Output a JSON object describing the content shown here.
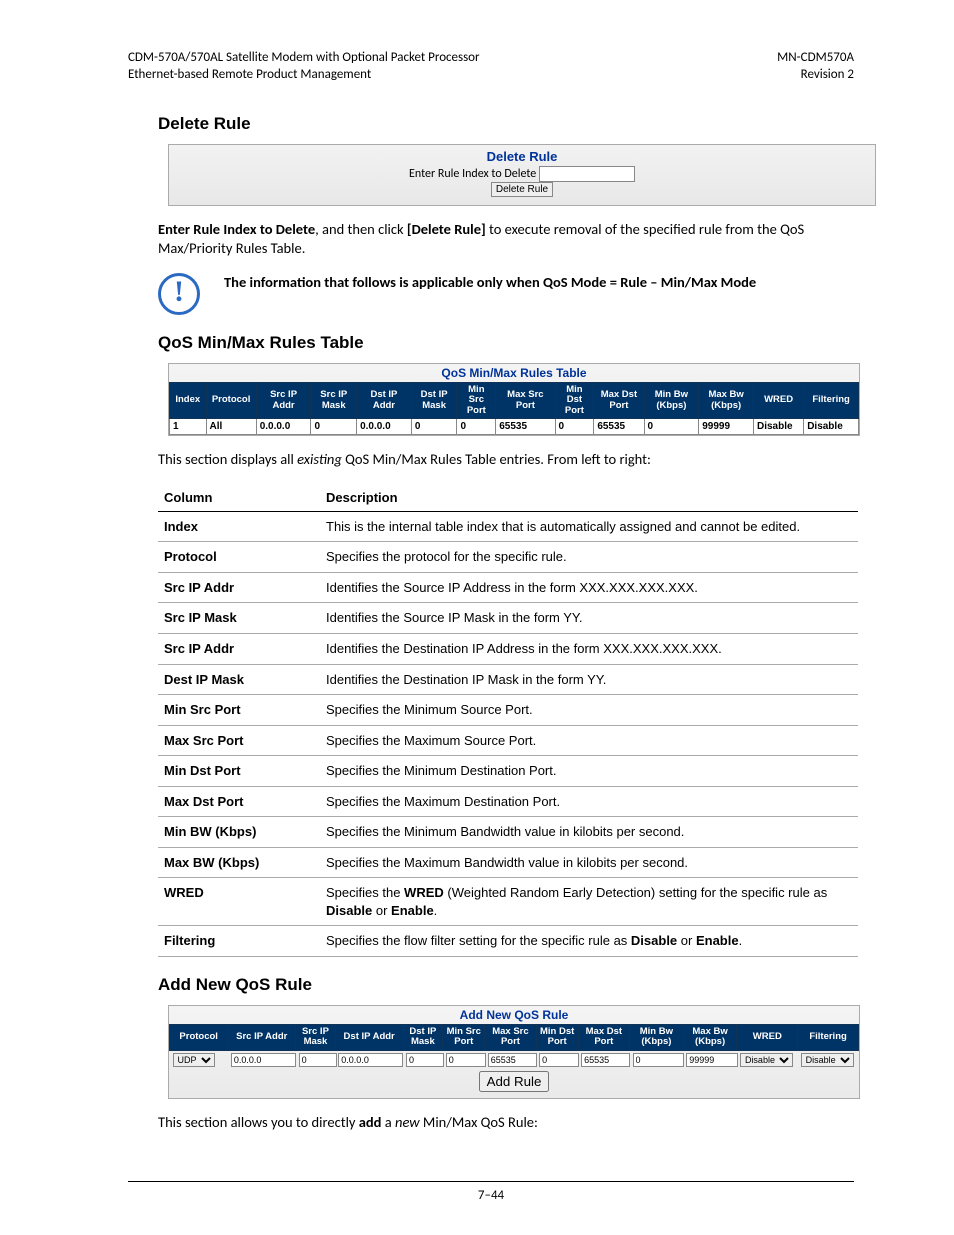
{
  "header": {
    "left_line1": "CDM-570A/570AL Satellite Modem with Optional Packet Processor",
    "left_line2": "Ethernet-based Remote Product Management",
    "right_line1": "MN-CDM570A",
    "right_line2": "Revision 2"
  },
  "section_delete_title": "Delete Rule",
  "delete_panel": {
    "title": "Delete Rule",
    "label": "Enter Rule Index to Delete",
    "button": "Delete Rule"
  },
  "delete_text_1a": "Enter Rule Index to Delete",
  "delete_text_1b": ", and then click ",
  "delete_text_1c": "[Delete Rule]",
  "delete_text_1d": " to execute removal of the specified rule from the QoS Max/Priority Rules Table.",
  "note_text": "The information that follows is applicable only when QoS Mode = Rule – Min/Max Mode",
  "section_qos_title": "QoS Min/Max Rules Table",
  "qos_panel_title": "QoS Min/Max Rules Table",
  "qos_headers": [
    "Index",
    "Protocol",
    "Src IP Addr",
    "Src IP Mask",
    "Dst IP Addr",
    "Dst IP Mask",
    "Min Src Port",
    "Max Src Port",
    "Min Dst Port",
    "Max Dst Port",
    "Min Bw (Kbps)",
    "Max Bw (Kbps)",
    "WRED",
    "Filtering"
  ],
  "qos_row": [
    "1",
    "All",
    "0.0.0.0",
    "0",
    "0.0.0.0",
    "0",
    "0",
    "65535",
    "0",
    "65535",
    "0",
    "99999",
    "Disable",
    "Disable"
  ],
  "qos_intro_a": "This section displays all ",
  "qos_intro_b": "existing",
  "qos_intro_c": " QoS Min/Max Rules Table entries. From left to right:",
  "desc_table": {
    "head_col": "Column",
    "head_desc": "Description",
    "rows": [
      {
        "c": "Index",
        "d": "This is the internal table index that is automatically assigned and cannot be edited."
      },
      {
        "c": "Protocol",
        "d": "Specifies the protocol for the specific rule."
      },
      {
        "c": "Src IP Addr",
        "d": "Identifies the Source IP Address in the form XXX.XXX.XXX.XXX."
      },
      {
        "c": "Src IP Mask",
        "d": "Identifies the Source IP Mask in the form YY."
      },
      {
        "c": "Src IP Addr",
        "d": "Identifies the Destination IP Address in the form XXX.XXX.XXX.XXX."
      },
      {
        "c": "Dest IP Mask",
        "d": "Identifies the Destination IP Mask in the form YY."
      },
      {
        "c": "Min Src Port",
        "d": "Specifies the Minimum Source Port."
      },
      {
        "c": "Max Src Port",
        "d": "Specifies the Maximum Source Port."
      },
      {
        "c": "Min Dst Port",
        "d": "Specifies the Minimum Destination Port."
      },
      {
        "c": "Max Dst Port",
        "d": "Specifies the Maximum Destination Port."
      },
      {
        "c": "Min BW (Kbps)",
        "d": "Specifies the Minimum Bandwidth value in kilobits per second."
      },
      {
        "c": "Max BW (Kbps)",
        "d": "Specifies the Maximum Bandwidth value in kilobits per second."
      }
    ],
    "wred_c": "WRED",
    "wred_d1": "Specifies the ",
    "wred_d2": "WRED",
    "wred_d3": " (Weighted Random Early Detection) setting for the specific rule as ",
    "wred_d4": "Disable",
    "wred_d5": " or ",
    "wred_d6": "Enable",
    "wred_d7": ".",
    "filt_c": "Filtering",
    "filt_d1": "Specifies the flow filter setting for the specific rule as ",
    "filt_d2": "Disable",
    "filt_d3": " or ",
    "filt_d4": "Enable",
    "filt_d5": "."
  },
  "section_add_title": "Add New QoS Rule",
  "add_panel_title": "Add New QoS Rule",
  "add_headers": [
    "Protocol",
    "Src IP Addr",
    "Src IP Mask",
    "Dst IP Addr",
    "Dst IP Mask",
    "Min Src Port",
    "Max Src Port",
    "Min Dst Port",
    "Max Dst Port",
    "Min Bw (Kbps)",
    "Max Bw (Kbps)",
    "WRED",
    "Filtering"
  ],
  "add_row": {
    "protocol": "UDP",
    "src_ip": "0.0.0.0",
    "src_mask": "0",
    "dst_ip": "0.0.0.0",
    "dst_mask": "0",
    "min_src": "0",
    "max_src": "65535",
    "min_dst": "0",
    "max_dst": "65535",
    "min_bw": "0",
    "max_bw": "99999",
    "wred": "Disable",
    "filtering": "Disable",
    "button": "Add Rule"
  },
  "add_intro_a": "This section allows you to directly ",
  "add_intro_b": "add",
  "add_intro_c": " a ",
  "add_intro_d": "new",
  "add_intro_e": " Min/Max QoS Rule:",
  "footer": "7–44"
}
